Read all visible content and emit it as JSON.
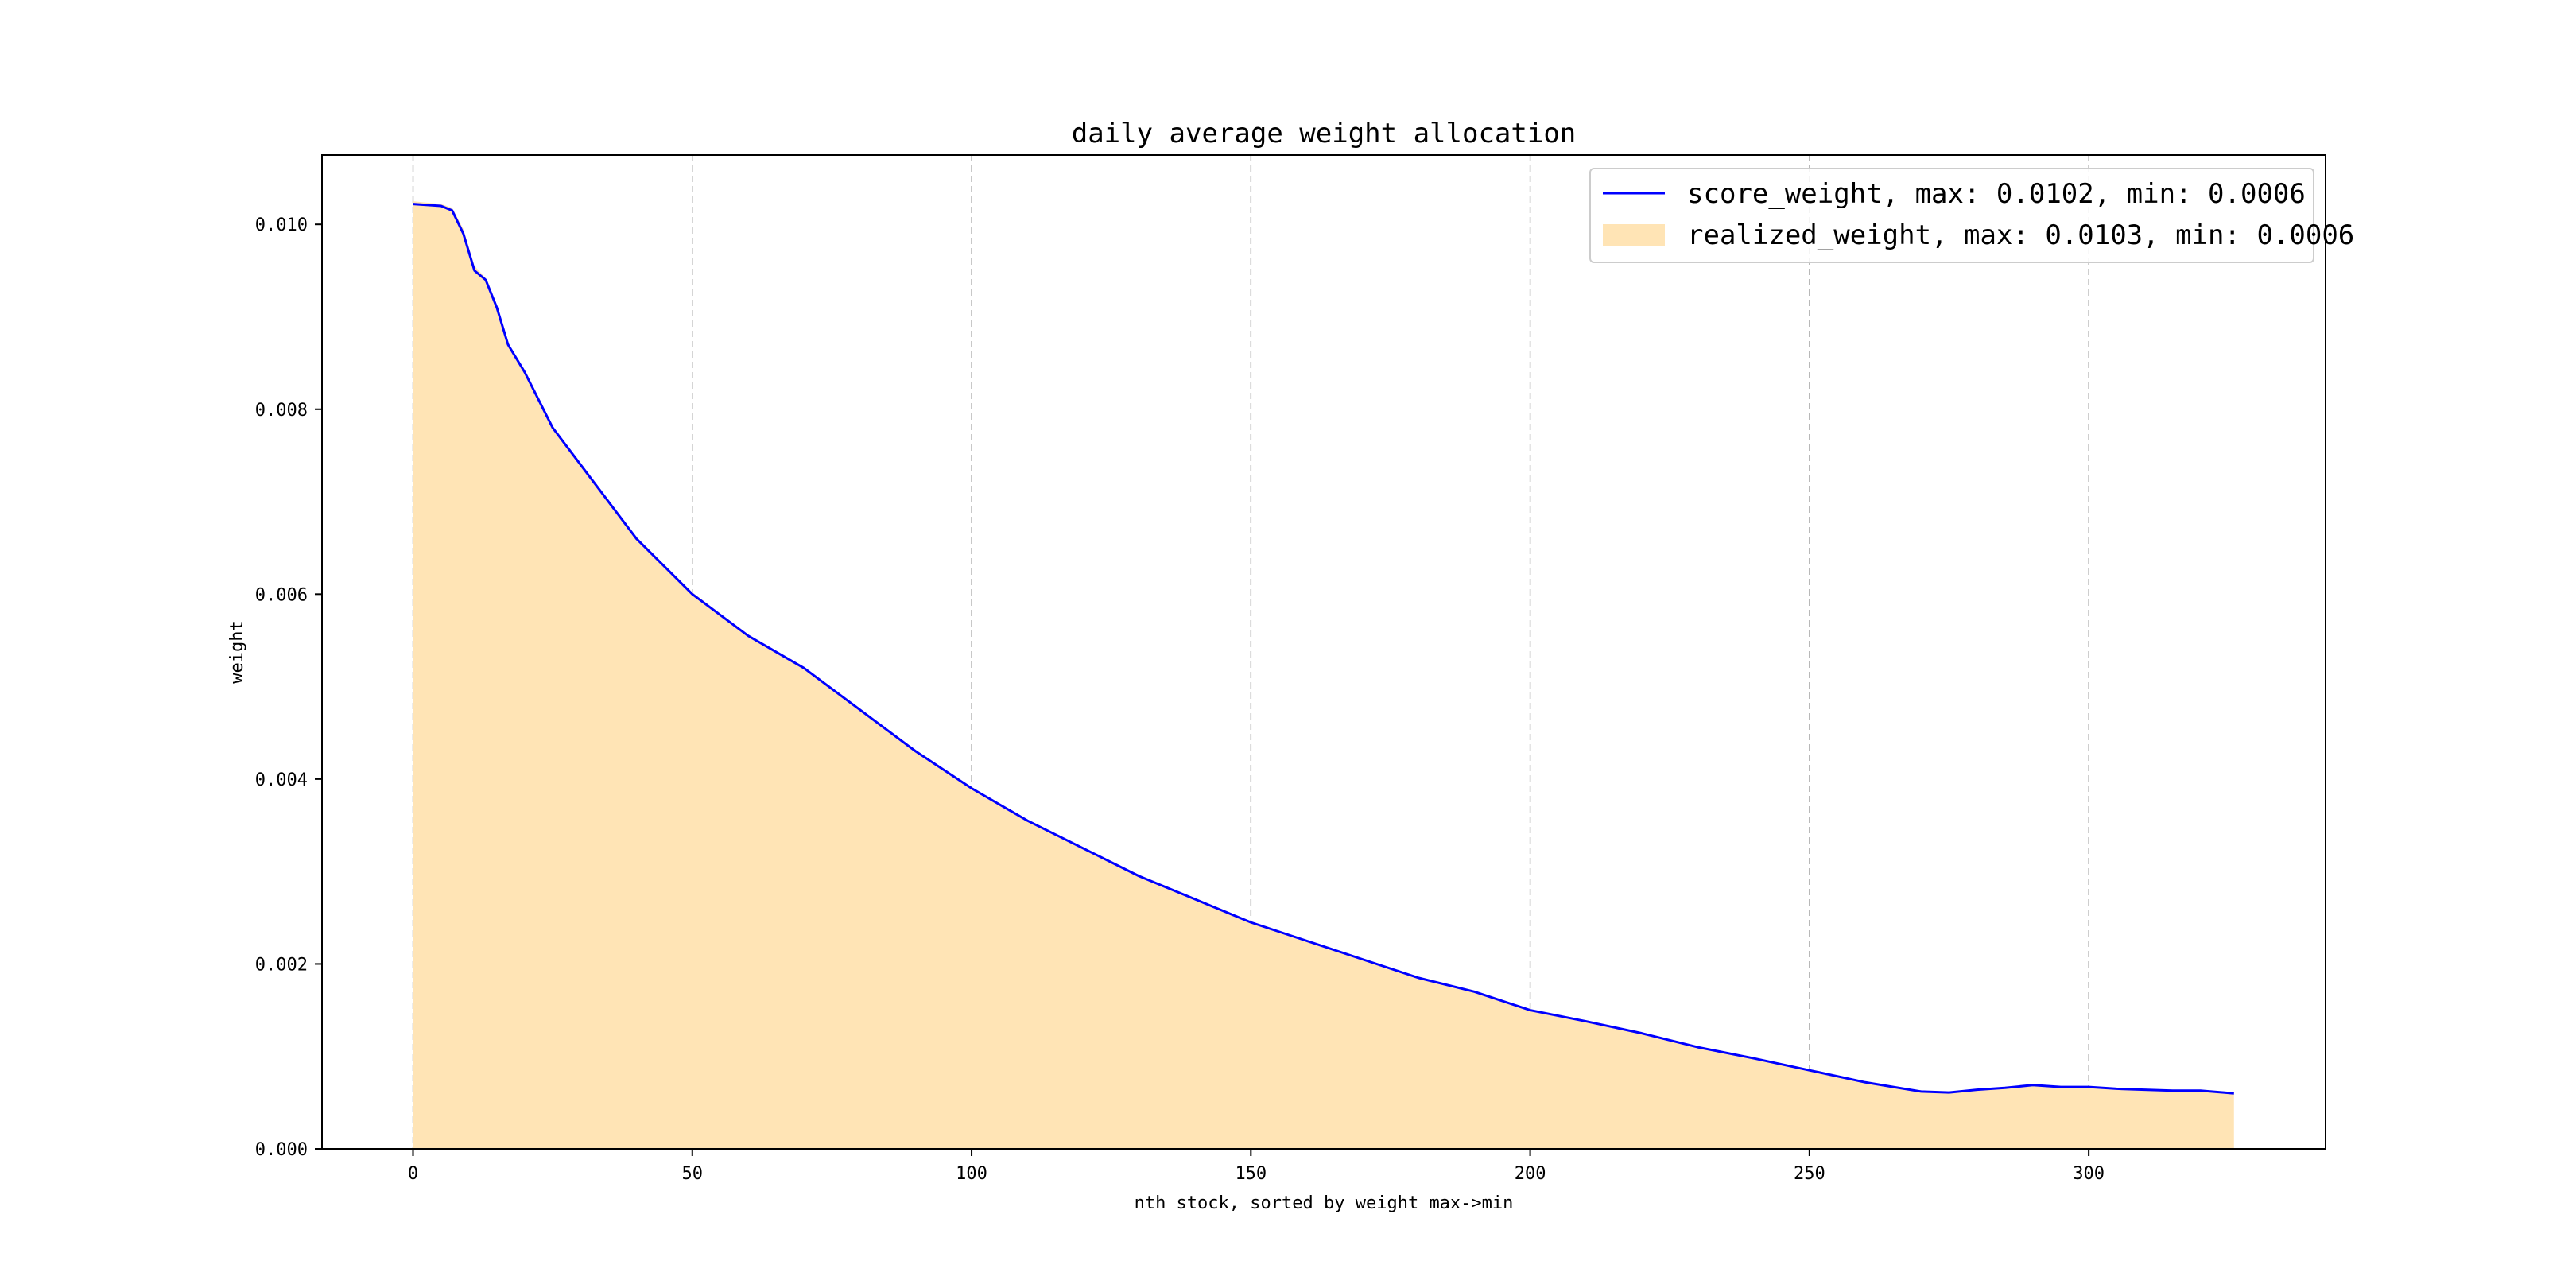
{
  "chart_data": {
    "type": "area",
    "title": "daily average weight allocation",
    "xlabel": "nth stock, sorted by weight max->min",
    "ylabel": "weight",
    "xlim": [
      -16.3,
      342.4
    ],
    "ylim": [
      0,
      0.01075
    ],
    "xticks": [
      0,
      50,
      100,
      150,
      200,
      250,
      300
    ],
    "yticks": [
      0.0,
      0.002,
      0.004,
      0.006,
      0.008,
      0.01
    ],
    "grid": "vertical-dashed",
    "legend_position": "top-right",
    "colors": {
      "score_line": "#0000ff",
      "realized_fill": "#ffe4b5",
      "grid": "#b0b0b0",
      "axes": "#000000"
    },
    "x": [
      0,
      5,
      7,
      9,
      11,
      13,
      15,
      17,
      20,
      25,
      30,
      35,
      40,
      50,
      60,
      70,
      80,
      90,
      100,
      110,
      120,
      130,
      140,
      150,
      160,
      170,
      180,
      190,
      200,
      210,
      220,
      230,
      240,
      250,
      260,
      265,
      270,
      275,
      280,
      285,
      290,
      295,
      300,
      305,
      310,
      315,
      320,
      326
    ],
    "series": [
      {
        "name": "score_weight, max: 0.0102, min: 0.0006",
        "style": "line",
        "values": [
          0.01022,
          0.0102,
          0.01015,
          0.0099,
          0.0095,
          0.0094,
          0.0091,
          0.0087,
          0.0084,
          0.0078,
          0.0074,
          0.007,
          0.0066,
          0.006,
          0.00555,
          0.0052,
          0.00475,
          0.0043,
          0.0039,
          0.00355,
          0.00325,
          0.00295,
          0.0027,
          0.00245,
          0.00225,
          0.00205,
          0.00185,
          0.0017,
          0.0015,
          0.00138,
          0.00125,
          0.0011,
          0.00098,
          0.00085,
          0.00072,
          0.00067,
          0.00062,
          0.00061,
          0.00064,
          0.00066,
          0.00069,
          0.00067,
          0.00067,
          0.00065,
          0.00064,
          0.00063,
          0.00063,
          0.0006
        ]
      },
      {
        "name": "realized_weight, max: 0.0103, min: 0.0006",
        "style": "area",
        "values": [
          0.01025,
          0.01022,
          0.01018,
          0.00995,
          0.00955,
          0.00942,
          0.00912,
          0.00872,
          0.00842,
          0.00782,
          0.00742,
          0.00702,
          0.00662,
          0.00602,
          0.00556,
          0.00521,
          0.00476,
          0.00431,
          0.00391,
          0.00356,
          0.00326,
          0.00296,
          0.00271,
          0.00246,
          0.00226,
          0.00206,
          0.00186,
          0.00171,
          0.00151,
          0.00139,
          0.00126,
          0.00111,
          0.00099,
          0.00086,
          0.00073,
          0.00068,
          0.00063,
          0.00062,
          0.00064,
          0.00066,
          0.00069,
          0.00067,
          0.00067,
          0.00065,
          0.00064,
          0.00063,
          0.00063,
          0.0006
        ]
      }
    ]
  }
}
